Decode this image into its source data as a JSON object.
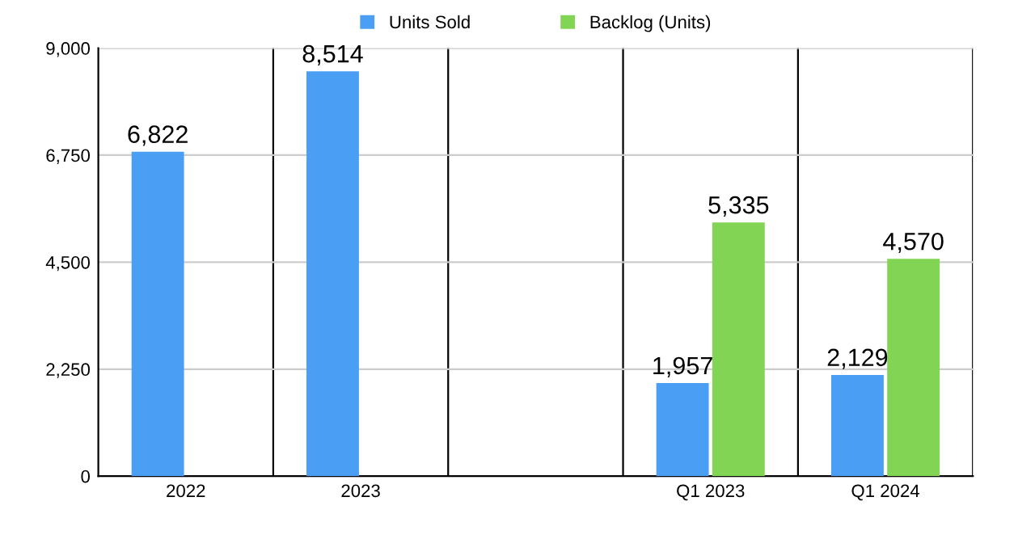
{
  "chart_data": {
    "type": "bar",
    "categories": [
      "2022",
      "2023",
      null,
      "Q1 2023",
      "Q1 2024"
    ],
    "series": [
      {
        "name": "Units Sold",
        "color": "#4a9ff5",
        "values": [
          6822,
          8514,
          null,
          1957,
          2129
        ],
        "value_labels": [
          "6,822",
          "8,514",
          null,
          "1,957",
          "2,129"
        ]
      },
      {
        "name": "Backlog (Units)",
        "color": "#82d454",
        "values": [
          null,
          null,
          null,
          5335,
          4570
        ],
        "value_labels": [
          null,
          null,
          null,
          "5,335",
          "4,570"
        ]
      }
    ],
    "ylim": [
      0,
      9000
    ],
    "yticks": [
      0,
      {
        "value": 2250,
        "label": "2,250"
      },
      {
        "value": 4500,
        "label": "4,500"
      },
      {
        "value": 6750,
        "label": "6,750"
      },
      {
        "value": 9000,
        "label": "9,000"
      }
    ],
    "grid": true,
    "legend": "top"
  }
}
